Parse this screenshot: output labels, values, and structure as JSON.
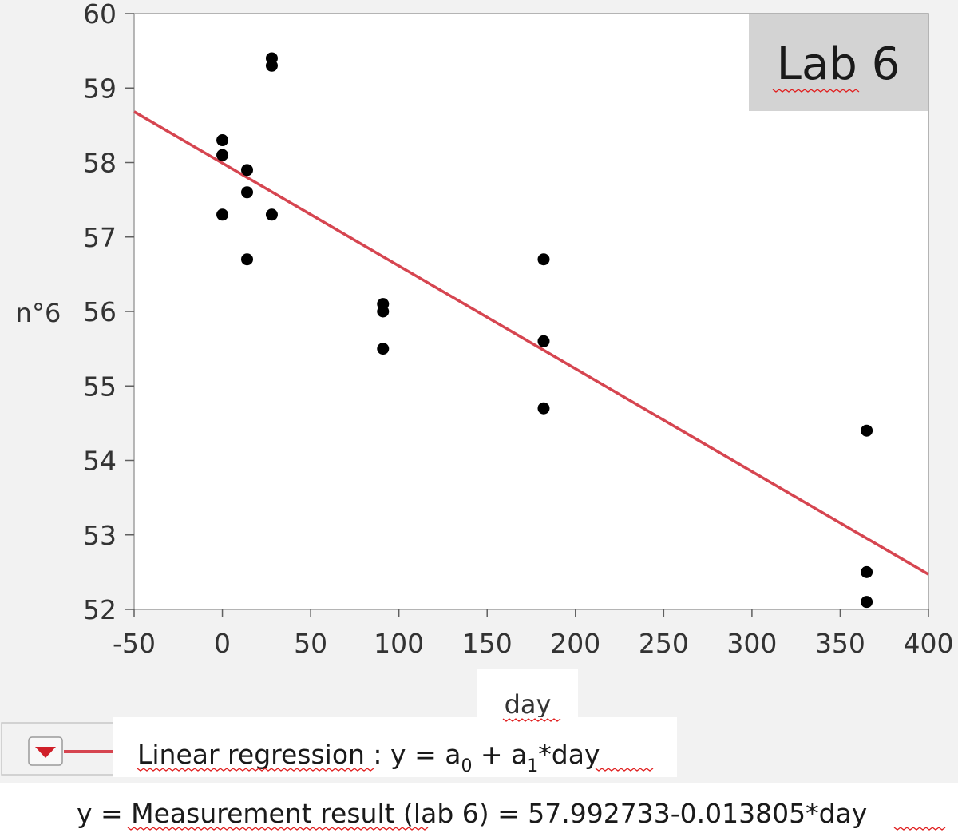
{
  "chart_data": {
    "type": "scatter",
    "inset_label": "Lab 6",
    "xlabel": "day",
    "ylabel": "n°6",
    "xlim": [
      -50,
      400
    ],
    "ylim": [
      52,
      60
    ],
    "x_ticks": [
      -50,
      0,
      50,
      100,
      150,
      200,
      250,
      300,
      350,
      400
    ],
    "y_ticks": [
      52,
      53,
      54,
      55,
      56,
      57,
      58,
      59,
      60
    ],
    "grid": false,
    "points": [
      {
        "x": 0,
        "y": 58.3
      },
      {
        "x": 0,
        "y": 58.1
      },
      {
        "x": 0,
        "y": 57.3
      },
      {
        "x": 14,
        "y": 57.9
      },
      {
        "x": 14,
        "y": 57.6
      },
      {
        "x": 14,
        "y": 56.7
      },
      {
        "x": 28,
        "y": 59.4
      },
      {
        "x": 28,
        "y": 59.3
      },
      {
        "x": 28,
        "y": 57.3
      },
      {
        "x": 91,
        "y": 56.1
      },
      {
        "x": 91,
        "y": 56.0
      },
      {
        "x": 91,
        "y": 55.5
      },
      {
        "x": 182,
        "y": 56.7
      },
      {
        "x": 182,
        "y": 55.6
      },
      {
        "x": 182,
        "y": 54.7
      },
      {
        "x": 365,
        "y": 54.4
      },
      {
        "x": 365,
        "y": 52.5
      },
      {
        "x": 365,
        "y": 52.1
      }
    ],
    "fit": {
      "type": "linear",
      "intercept": 57.992733,
      "slope": -0.013805,
      "color": "#d64550"
    },
    "legend": {
      "title_main": "Linear regression :  y = a",
      "sub0": "0",
      "mid": " + a",
      "sub1": "1",
      "tail": "*day"
    },
    "equation": "y = Measurement result (lab 6) = 57.992733-0.013805*day",
    "point_color": "#000000"
  }
}
